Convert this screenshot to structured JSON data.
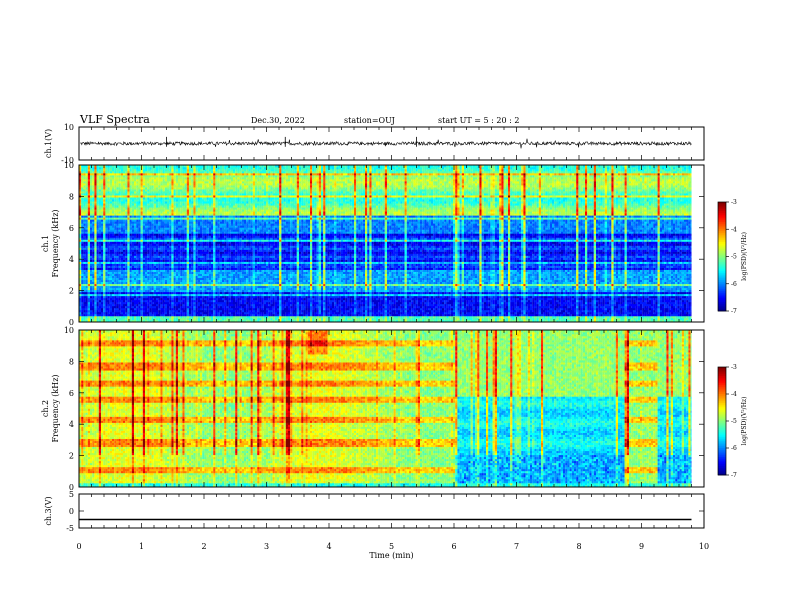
{
  "header": {
    "title": "VLF Spectra",
    "date": "Dec.30, 2022",
    "station": "station=OUJ",
    "start": "start  UT =   5 : 20 : 2"
  },
  "chart_data": [
    {
      "type": "line",
      "ylabel": "ch.1(V)",
      "ylim": [
        -10,
        10
      ],
      "yticks": [
        "10",
        "-10"
      ],
      "baseline": 0,
      "noise_amplitude": 1
    },
    {
      "type": "heatmap",
      "ylabel": "ch.1\nFrequency (kHz)",
      "ylim": [
        0,
        10
      ],
      "yticks": [
        "0",
        "2",
        "4",
        "6",
        "8",
        "10"
      ],
      "colorbar": {
        "label": "log(PSD)(V²/Hz)",
        "ticks": [
          "-3",
          "-4",
          "-5",
          "-6",
          "-7"
        ],
        "range": [
          -7,
          -3
        ]
      }
    },
    {
      "type": "heatmap",
      "ylabel": "ch.2\nFrequency (kHz)",
      "ylim": [
        0,
        10
      ],
      "yticks": [
        "0",
        "2",
        "4",
        "6",
        "8",
        "10"
      ],
      "colorbar": {
        "label": "log(PSD)(V²/Hz)",
        "ticks": [
          "-3",
          "-4",
          "-5",
          "-6",
          "-7"
        ],
        "range": [
          -7,
          -3
        ]
      },
      "regime_change_min": 6.0
    },
    {
      "type": "line",
      "ylabel": "ch.3(V)",
      "ylim": [
        -5,
        5
      ],
      "yticks": [
        "5",
        "0",
        "-5"
      ],
      "baseline": -2.5
    }
  ],
  "xaxis": {
    "label": "Time (min)",
    "ticks": [
      "0",
      "1",
      "2",
      "3",
      "4",
      "5",
      "6",
      "7",
      "8",
      "9",
      "10"
    ],
    "range": [
      0,
      10
    ],
    "data_end": 9.8
  },
  "colors": {
    "frame": "#000000",
    "background": "#ffffff"
  }
}
